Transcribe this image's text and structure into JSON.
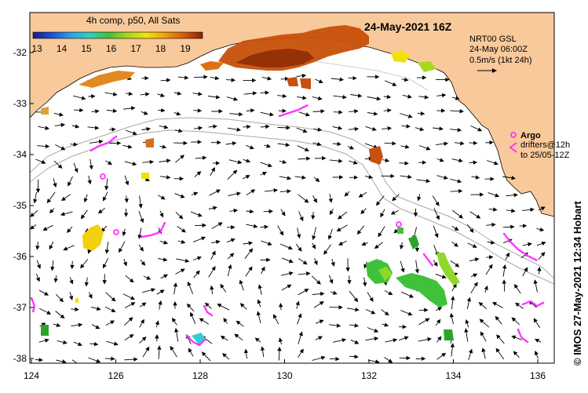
{
  "map": {
    "title": "24-May-2021 16Z",
    "colorbar": {
      "title": "4h comp, p50, All Sats",
      "ticks": [
        "13",
        "14",
        "15",
        "16",
        "17",
        "18",
        "19"
      ],
      "colors": [
        "#1a1a8c",
        "#1f4fd9",
        "#2fa0e8",
        "#33cfc0",
        "#3fc23a",
        "#a6d81f",
        "#f2e20c",
        "#f0a010",
        "#d85a08",
        "#8c1e05"
      ]
    },
    "product_lines": [
      "NRT00 GSL",
      "24-May 06:00Z",
      "0.5m/s (1kt 24h)"
    ],
    "argo_label": "Argo",
    "drifter_lines": [
      "drifters@12h",
      "to 25/05-12Z"
    ],
    "credit": "© IMOS 27-May-2021 12:34 Hobart",
    "lon_ticks": [
      "124",
      "126",
      "128",
      "130",
      "132",
      "134",
      "136"
    ],
    "lat_ticks": [
      "-32",
      "-33",
      "-34",
      "-35",
      "-36",
      "-37",
      "-38"
    ],
    "land_color": "#f8c99a",
    "ocean_color": "#ffffff",
    "argo_color": "#ff33ff",
    "drifter_color": "#ff33ff"
  }
}
